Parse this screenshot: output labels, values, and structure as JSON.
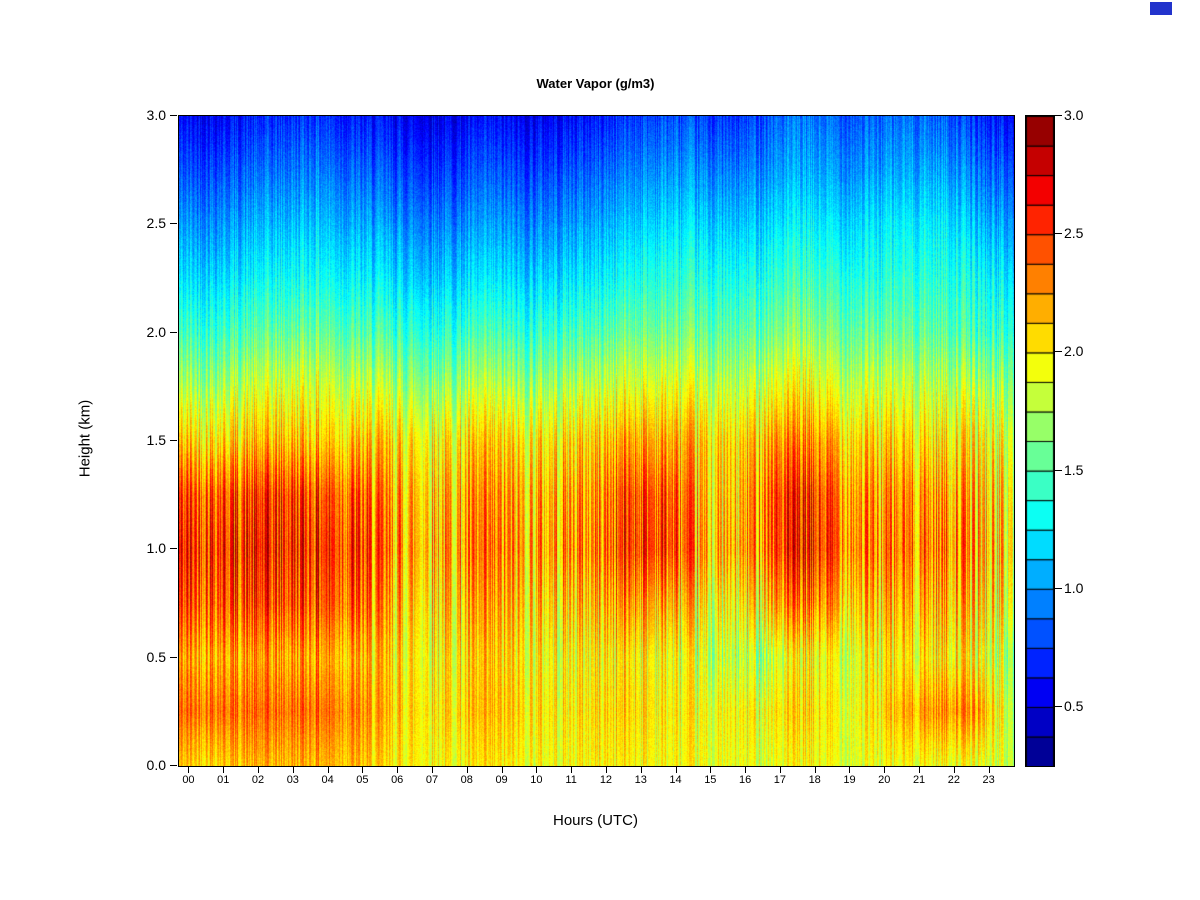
{
  "decor": {
    "corner_swatch_color": "#2233cc"
  },
  "chart_data": {
    "type": "heatmap",
    "title": "Water Vapor (g/m3)",
    "xlabel": "Hours (UTC)",
    "ylabel": "Height (km)",
    "x_range": [
      0,
      24
    ],
    "y_range": [
      0,
      3
    ],
    "x_tick_labels": [
      "00",
      "01",
      "02",
      "03",
      "04",
      "05",
      "06",
      "07",
      "08",
      "09",
      "10",
      "11",
      "12",
      "13",
      "14",
      "15",
      "16",
      "17",
      "18",
      "19",
      "20",
      "21",
      "22",
      "23"
    ],
    "x_tick_values": [
      0,
      1,
      2,
      3,
      4,
      5,
      6,
      7,
      8,
      9,
      10,
      11,
      12,
      13,
      14,
      15,
      16,
      17,
      18,
      19,
      20,
      21,
      22,
      23
    ],
    "y_tick_labels": [
      "0.0",
      "0.5",
      "1.0",
      "1.5",
      "2.0",
      "2.5",
      "3.0"
    ],
    "y_tick_values": [
      0,
      0.5,
      1,
      1.5,
      2,
      2.5,
      3
    ],
    "colorbar": {
      "min": 0.25,
      "max": 3.0,
      "segments": 22,
      "colormap": "jet",
      "tick_labels": [
        "0.5",
        "1.0",
        "1.5",
        "2.0",
        "2.5",
        "3.0"
      ],
      "tick_values": [
        0.5,
        1.0,
        1.5,
        2.0,
        2.5,
        3.0
      ]
    },
    "heights_km": [
      0,
      0.25,
      0.5,
      0.75,
      1,
      1.25,
      1.5,
      1.75,
      2,
      2.25,
      2.5,
      2.75,
      3
    ],
    "hours_x": [
      0,
      1,
      2,
      3,
      4,
      5,
      6,
      7,
      8,
      9,
      10,
      11,
      12,
      13,
      14,
      15,
      16,
      17,
      18,
      19,
      20,
      21,
      22,
      23,
      24
    ],
    "values_by_height": [
      [
        2.1,
        2.1,
        2.15,
        2.15,
        2.2,
        2.15,
        2.0,
        2.0,
        1.95,
        2.0,
        1.95,
        1.95,
        2.0,
        2.0,
        1.95,
        1.9,
        1.9,
        1.9,
        1.95,
        1.9,
        1.9,
        1.95,
        1.95,
        1.9,
        1.8
      ],
      [
        2.35,
        2.4,
        2.35,
        2.35,
        2.4,
        2.3,
        2.1,
        2.05,
        2.05,
        2.1,
        2.05,
        2.0,
        2.05,
        2.1,
        2.0,
        1.9,
        1.95,
        2.0,
        2.05,
        1.95,
        2.0,
        2.2,
        2.3,
        2.25,
        1.75
      ],
      [
        2.2,
        2.25,
        2.2,
        2.2,
        2.25,
        2.15,
        2.05,
        2.0,
        2.0,
        2.05,
        2.0,
        1.95,
        2.0,
        2.05,
        1.95,
        1.8,
        1.75,
        1.8,
        1.95,
        1.9,
        1.95,
        2.0,
        2.05,
        1.95,
        1.7
      ],
      [
        2.45,
        2.5,
        2.45,
        2.45,
        2.5,
        2.4,
        2.15,
        2.1,
        2.1,
        2.15,
        2.1,
        2.1,
        2.15,
        2.3,
        2.2,
        1.95,
        1.9,
        2.2,
        2.3,
        2.2,
        2.1,
        2.15,
        2.2,
        2.1,
        1.9
      ],
      [
        2.55,
        2.6,
        2.55,
        2.55,
        2.6,
        2.5,
        2.25,
        2.2,
        2.2,
        2.25,
        2.2,
        2.25,
        2.3,
        2.55,
        2.5,
        2.15,
        2.1,
        2.45,
        2.55,
        2.4,
        2.25,
        2.3,
        2.35,
        2.2,
        2.0
      ],
      [
        2.45,
        2.5,
        2.45,
        2.5,
        2.5,
        2.4,
        2.2,
        2.15,
        2.15,
        2.2,
        2.15,
        2.2,
        2.25,
        2.5,
        2.45,
        2.1,
        2.05,
        2.45,
        2.5,
        2.35,
        2.2,
        2.25,
        2.25,
        2.15,
        1.95
      ],
      [
        2.1,
        2.1,
        2.1,
        2.15,
        2.15,
        2.1,
        2.05,
        2.0,
        2.0,
        2.05,
        2.0,
        2.05,
        2.1,
        2.25,
        2.2,
        2.05,
        2.0,
        2.25,
        2.25,
        2.15,
        2.05,
        2.05,
        2.05,
        2.0,
        1.85
      ],
      [
        1.75,
        1.75,
        1.8,
        1.85,
        1.9,
        1.8,
        1.75,
        1.7,
        1.7,
        1.75,
        1.7,
        1.75,
        1.8,
        1.9,
        1.9,
        1.8,
        1.75,
        1.9,
        1.95,
        1.85,
        1.8,
        1.8,
        1.8,
        1.75,
        1.65
      ],
      [
        1.45,
        1.45,
        1.5,
        1.55,
        1.6,
        1.5,
        1.45,
        1.4,
        1.4,
        1.45,
        1.4,
        1.45,
        1.5,
        1.6,
        1.6,
        1.55,
        1.5,
        1.6,
        1.65,
        1.6,
        1.55,
        1.55,
        1.55,
        1.45,
        1.4
      ],
      [
        1.2,
        1.2,
        1.25,
        1.3,
        1.35,
        1.25,
        1.2,
        1.15,
        1.15,
        1.2,
        1.15,
        1.2,
        1.25,
        1.35,
        1.4,
        1.35,
        1.3,
        1.4,
        1.45,
        1.4,
        1.35,
        1.4,
        1.4,
        1.3,
        1.2
      ],
      [
        1.0,
        1.0,
        1.05,
        1.1,
        1.15,
        1.05,
        1.0,
        0.95,
        0.95,
        1.0,
        0.95,
        1.0,
        1.05,
        1.15,
        1.2,
        1.15,
        1.1,
        1.2,
        1.25,
        1.2,
        1.2,
        1.25,
        1.25,
        1.1,
        1.0
      ],
      [
        0.8,
        0.8,
        0.85,
        0.9,
        0.95,
        0.85,
        0.8,
        0.75,
        0.75,
        0.8,
        0.75,
        0.8,
        0.85,
        0.95,
        1.0,
        0.95,
        0.9,
        1.0,
        1.05,
        1.0,
        1.0,
        1.05,
        1.05,
        0.9,
        0.8
      ],
      [
        0.6,
        0.6,
        0.65,
        0.7,
        0.75,
        0.65,
        0.6,
        0.55,
        0.55,
        0.6,
        0.55,
        0.6,
        0.65,
        0.75,
        0.8,
        0.75,
        0.7,
        0.85,
        0.9,
        0.85,
        0.85,
        0.9,
        0.85,
        0.7,
        0.6
      ]
    ]
  }
}
